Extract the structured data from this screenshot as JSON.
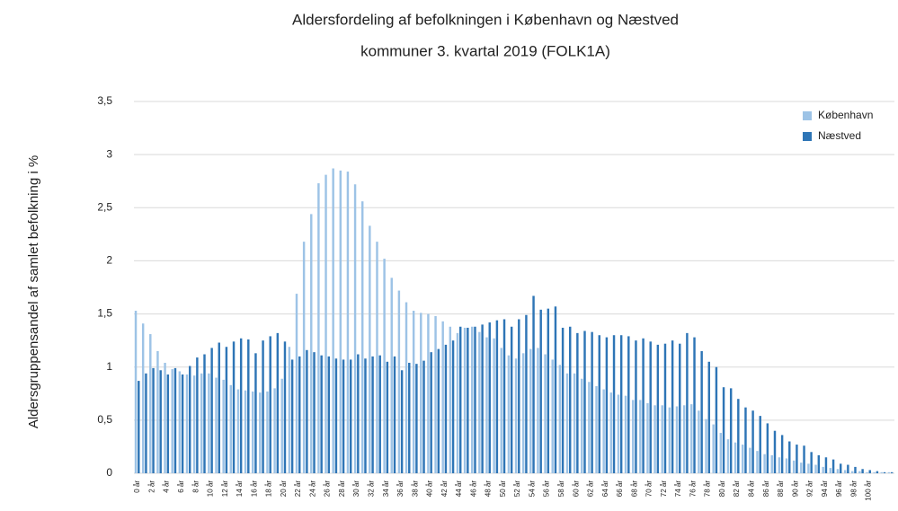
{
  "chart_data": {
    "type": "bar",
    "title": "Aldersfordeling af befolkningen i København og Næstved",
    "subtitle": "kommuner 3. kvartal 2019 (FOLK1A)",
    "y_label": "Aldersgruppensandel af samlet befolkning i %",
    "categories": [
      "0 år",
      null,
      "2 år",
      null,
      "4 år",
      null,
      "6 år",
      null,
      "8 år",
      null,
      "10 år",
      null,
      "12 år",
      null,
      "14 år",
      null,
      "16 år",
      null,
      "18 år",
      null,
      "20 år",
      null,
      "22 år",
      null,
      "24 år",
      null,
      "26 år",
      null,
      "28 år",
      null,
      "30 år",
      null,
      "32 år",
      null,
      "34 år",
      null,
      "36 år",
      null,
      "38 år",
      null,
      "40 år",
      null,
      "42 år",
      null,
      "44 år",
      null,
      "46 år",
      null,
      "48 år",
      null,
      "50 år",
      null,
      "52 år",
      null,
      "54 år",
      null,
      "56 år",
      null,
      "58 år",
      null,
      "60 år",
      null,
      "62 år",
      null,
      "64 år",
      null,
      "66 år",
      null,
      "68 år",
      null,
      "70 år",
      null,
      "72 år",
      null,
      "74 år",
      null,
      "76 år",
      null,
      "78 år",
      null,
      "80 år",
      null,
      "82 år",
      null,
      "84 år",
      null,
      "86 år",
      null,
      "88 år",
      null,
      "90 år",
      null,
      "92 år",
      null,
      "94 år",
      null,
      "96 år",
      null,
      "98 år",
      null,
      "100 år",
      null,
      null,
      null
    ],
    "series": [
      {
        "name": "København",
        "color": "#9dc3e6",
        "values": [
          1.53,
          1.41,
          1.31,
          1.15,
          1.04,
          0.98,
          0.96,
          0.93,
          0.92,
          0.94,
          0.94,
          0.9,
          0.88,
          0.83,
          0.79,
          0.78,
          0.77,
          0.76,
          0.77,
          0.8,
          0.89,
          1.19,
          1.69,
          2.18,
          2.44,
          2.73,
          2.81,
          2.87,
          2.85,
          2.84,
          2.72,
          2.56,
          2.33,
          2.18,
          2.02,
          1.84,
          1.72,
          1.61,
          1.53,
          1.51,
          1.5,
          1.48,
          1.43,
          1.38,
          1.32,
          1.37,
          1.38,
          1.33,
          1.28,
          1.27,
          1.18,
          1.11,
          1.08,
          1.13,
          1.17,
          1.18,
          1.12,
          1.07,
          1.02,
          0.94,
          0.94,
          0.89,
          0.86,
          0.82,
          0.79,
          0.76,
          0.74,
          0.73,
          0.69,
          0.69,
          0.66,
          0.64,
          0.64,
          0.62,
          0.63,
          0.64,
          0.65,
          0.59,
          0.51,
          0.46,
          0.38,
          0.32,
          0.29,
          0.27,
          0.24,
          0.21,
          0.18,
          0.17,
          0.15,
          0.14,
          0.12,
          0.1,
          0.09,
          0.08,
          0.06,
          0.05,
          0.04,
          0.03,
          0.02,
          0.02,
          0.01,
          0.01,
          0.01,
          0.01
        ]
      },
      {
        "name": "Næstved",
        "color": "#2e75b6",
        "values": [
          0.87,
          0.94,
          0.99,
          0.97,
          0.93,
          0.99,
          0.93,
          1.01,
          1.09,
          1.12,
          1.18,
          1.23,
          1.19,
          1.24,
          1.27,
          1.26,
          1.13,
          1.25,
          1.29,
          1.32,
          1.24,
          1.07,
          1.1,
          1.16,
          1.14,
          1.11,
          1.1,
          1.08,
          1.07,
          1.07,
          1.12,
          1.08,
          1.1,
          1.11,
          1.05,
          1.1,
          0.97,
          1.04,
          1.03,
          1.06,
          1.14,
          1.17,
          1.21,
          1.25,
          1.38,
          1.37,
          1.38,
          1.4,
          1.42,
          1.44,
          1.45,
          1.38,
          1.45,
          1.49,
          1.67,
          1.54,
          1.55,
          1.57,
          1.37,
          1.38,
          1.32,
          1.34,
          1.33,
          1.3,
          1.28,
          1.3,
          1.3,
          1.29,
          1.25,
          1.27,
          1.24,
          1.21,
          1.22,
          1.25,
          1.22,
          1.32,
          1.28,
          1.15,
          1.05,
          1.0,
          0.81,
          0.8,
          0.7,
          0.62,
          0.59,
          0.54,
          0.47,
          0.4,
          0.36,
          0.3,
          0.27,
          0.26,
          0.2,
          0.17,
          0.15,
          0.13,
          0.09,
          0.08,
          0.06,
          0.04,
          0.03,
          0.02,
          0.01,
          0.01
        ]
      }
    ],
    "ylim": [
      0,
      3.5
    ],
    "yticks": [
      0,
      {
        "value": 0.5,
        "label": "0,5"
      },
      1,
      {
        "value": 1.5,
        "label": "1,5"
      },
      2,
      {
        "value": 2.5,
        "label": "2,5"
      },
      3,
      {
        "value": 3.5,
        "label": "3,5"
      }
    ],
    "grid": true,
    "legend": "top-right"
  }
}
